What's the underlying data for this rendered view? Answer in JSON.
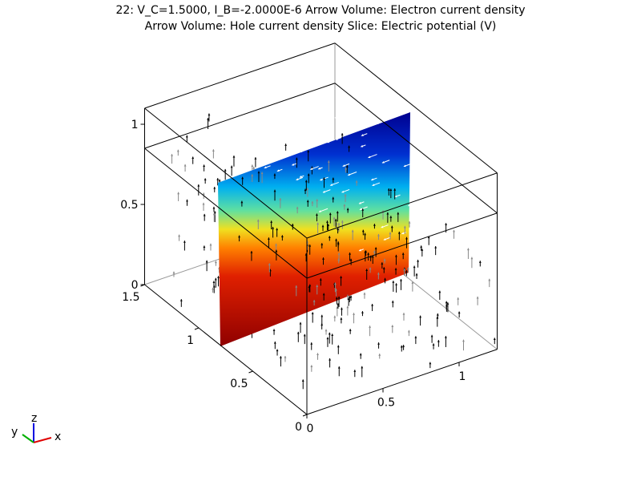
{
  "title": [
    "22: V_C=1.5000, I_B=-2.0000E-6   Arrow Volume: Electron current density",
    "Arrow Volume: Hole current density  Slice: Electric potential (V)"
  ],
  "axes": {
    "x": {
      "ticks": [
        0,
        0.5,
        1
      ]
    },
    "y": {
      "ticks": [
        0,
        0.5,
        1,
        1.5
      ]
    },
    "z": {
      "ticks": [
        0,
        0.5,
        1
      ]
    }
  },
  "triad": {
    "x": "x",
    "y": "y",
    "z": "z"
  }
}
